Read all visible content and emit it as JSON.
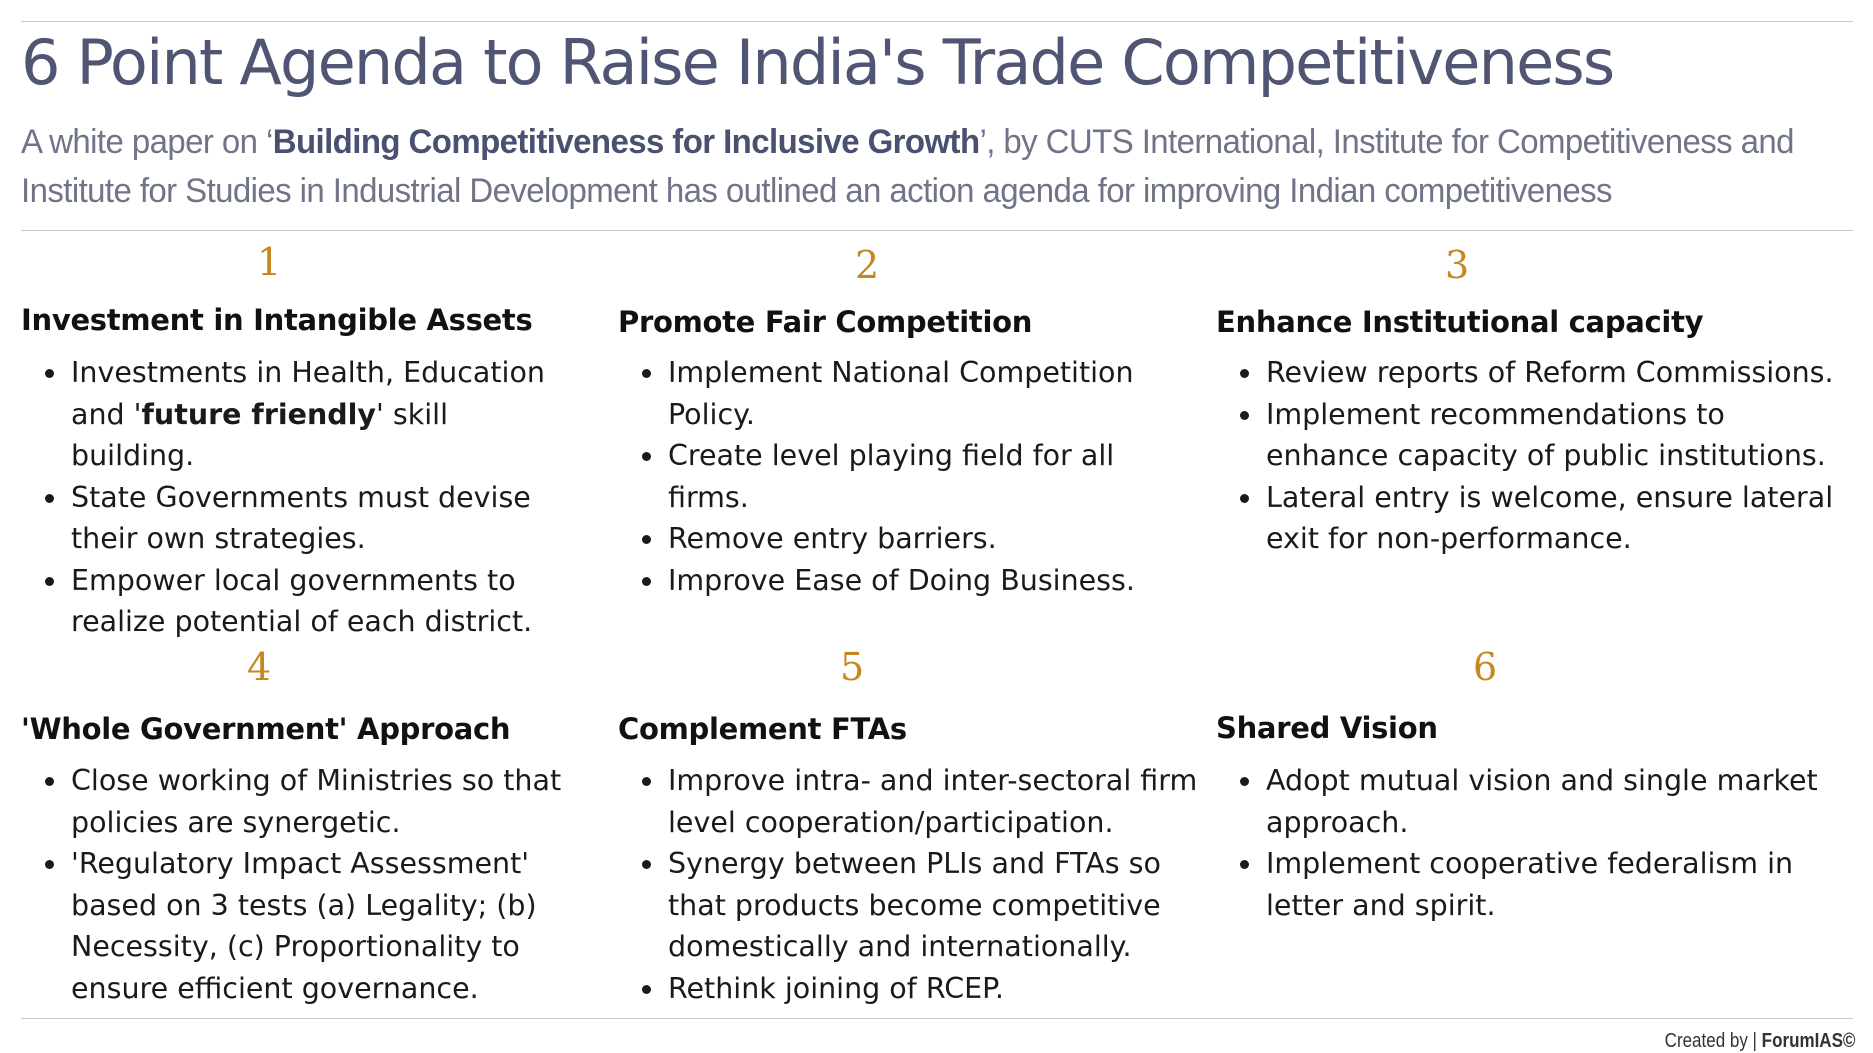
{
  "title": "6 Point Agenda to Raise India's Trade Competitiveness",
  "subtitle": {
    "prefix": "A white paper on ‘",
    "bold": "Building Competitiveness for Inclusive Growth",
    "suffix": "’, by CUTS International, Institute for Competitiveness and Institute for Studies in Industrial Development has outlined an action agenda for improving Indian competitiveness"
  },
  "points": [
    {
      "number": "1",
      "heading": "Investment in Intangible Assets",
      "bullets": [
        {
          "pre": "Investments in Health, Education and '",
          "bold": "future friendly",
          "post": "' skill building."
        },
        {
          "pre": "State Governments must devise their own strategies.",
          "bold": "",
          "post": ""
        },
        {
          "pre": "Empower local governments to realize potential of each district.",
          "bold": "",
          "post": ""
        }
      ]
    },
    {
      "number": "2",
      "heading": "Promote Fair Competition",
      "bullets": [
        {
          "pre": "Implement National Competition Policy.",
          "bold": "",
          "post": ""
        },
        {
          "pre": "Create level playing field for all firms.",
          "bold": "",
          "post": ""
        },
        {
          "pre": "Remove entry barriers.",
          "bold": "",
          "post": ""
        },
        {
          "pre": "Improve Ease of Doing Business.",
          "bold": "",
          "post": ""
        }
      ]
    },
    {
      "number": "3",
      "heading": "Enhance Institutional capacity",
      "bullets": [
        {
          "pre": "Review reports of Reform Commissions.",
          "bold": "",
          "post": ""
        },
        {
          "pre": "Implement recommendations to enhance capacity of public institutions.",
          "bold": "",
          "post": ""
        },
        {
          "pre": "Lateral entry is welcome, ensure lateral exit for non-performance.",
          "bold": "",
          "post": ""
        }
      ]
    },
    {
      "number": "4",
      "heading": "'Whole Government' Approach",
      "bullets": [
        {
          "pre": "Close working of Ministries so that policies are synergetic.",
          "bold": "",
          "post": ""
        },
        {
          "pre": "'Regulatory Impact Assessment' based on 3 tests (a) Legality; (b) Necessity, (c) Proportionality to ensure efficient governance.",
          "bold": "",
          "post": ""
        }
      ]
    },
    {
      "number": "5",
      "heading": "Complement FTAs",
      "bullets": [
        {
          "pre": "Improve intra- and inter-sectoral firm level cooperation/participation.",
          "bold": "",
          "post": ""
        },
        {
          "pre": "Synergy between PLIs and FTAs so that products become competitive domestically and internationally.",
          "bold": "",
          "post": ""
        },
        {
          "pre": "Rethink joining of RCEP.",
          "bold": "",
          "post": ""
        }
      ]
    },
    {
      "number": "6",
      "heading": "Shared Vision",
      "bullets": [
        {
          "pre": "Adopt mutual vision and single market approach.",
          "bold": "",
          "post": ""
        },
        {
          "pre": "Implement cooperative federalism in letter and spirit.",
          "bold": "",
          "post": ""
        }
      ]
    }
  ],
  "credit": {
    "prefix": "Created by | ",
    "brand": "ForumIAS©"
  },
  "colors": {
    "title": "#4f5572",
    "number_accent": "#c8861e",
    "rule": "#c9c9c9"
  }
}
